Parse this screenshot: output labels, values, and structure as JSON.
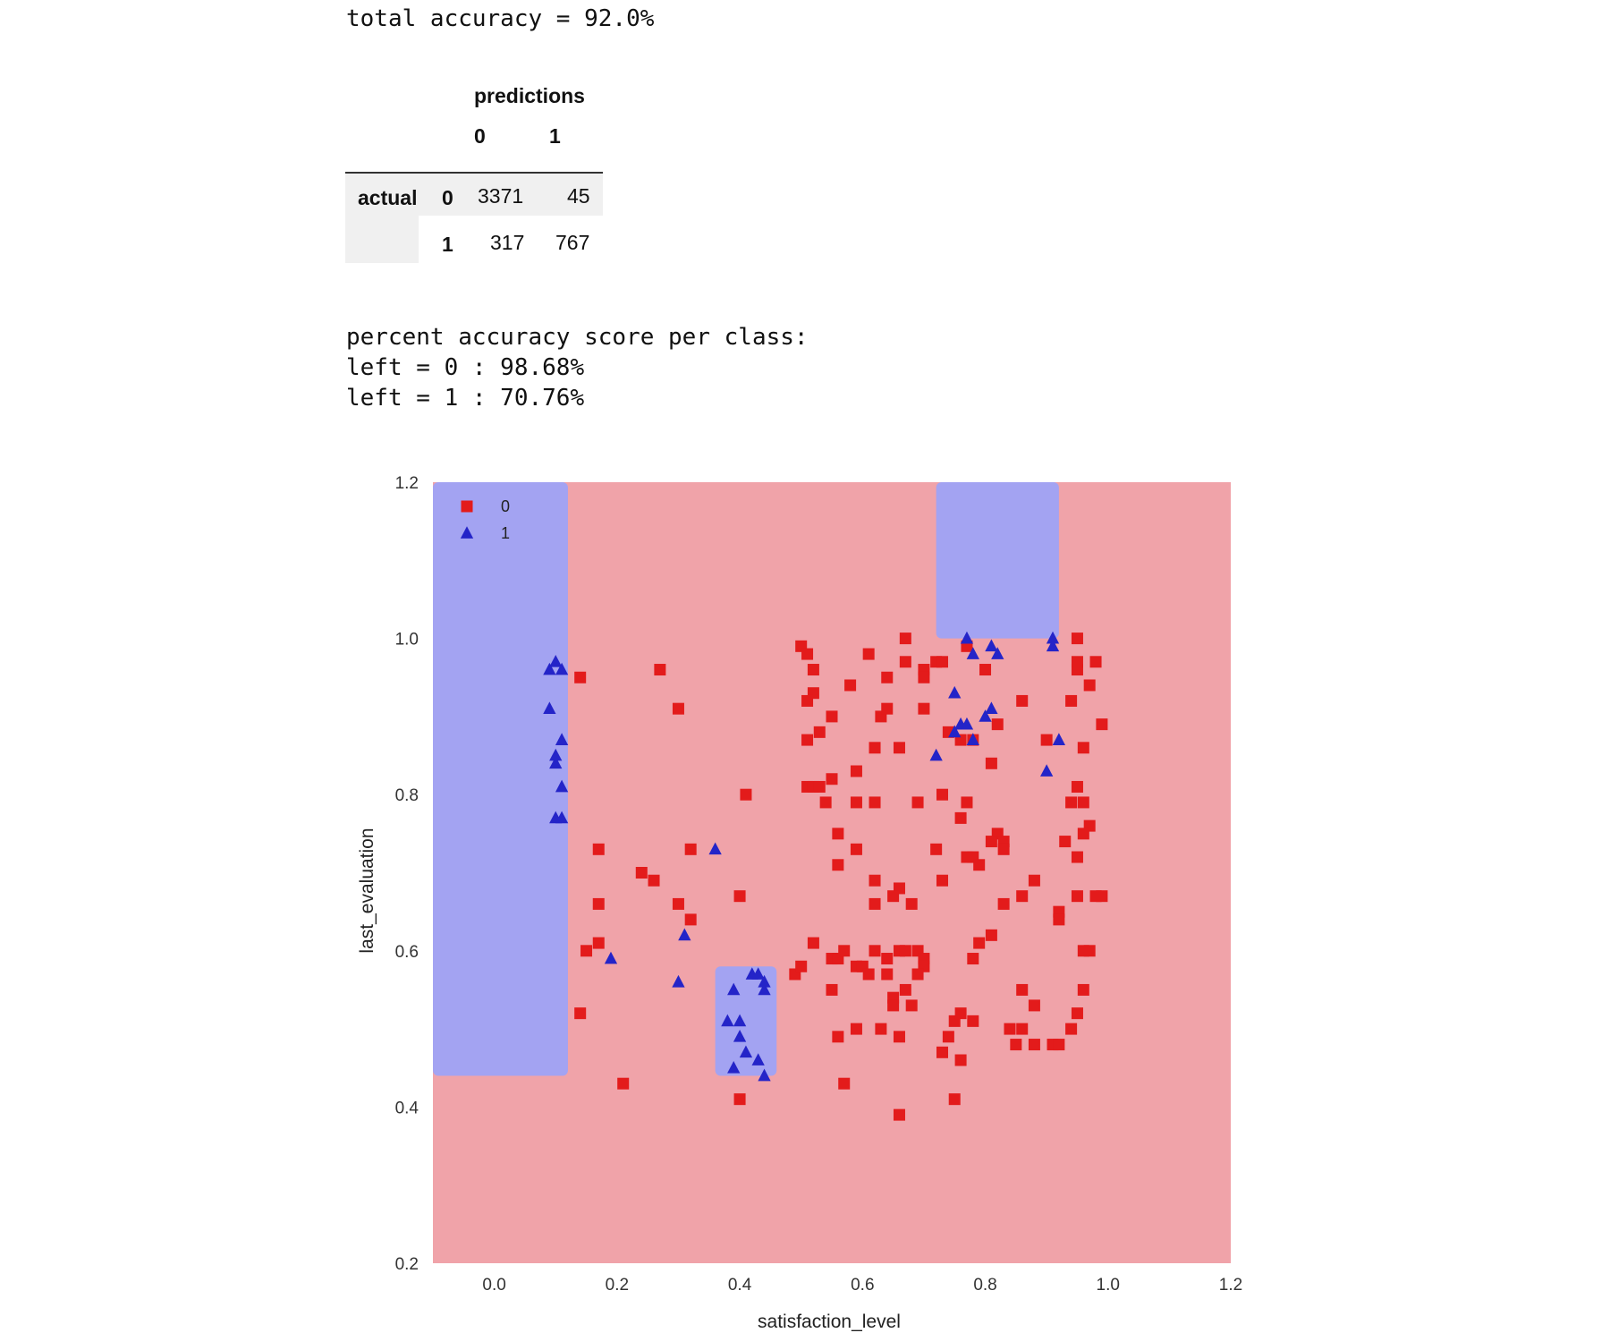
{
  "report": {
    "total_accuracy_line": "total accuracy = 92.0%",
    "per_class_heading": "percent accuracy score per class:",
    "per_class_lines": [
      "left = 0 : 98.68%",
      "left = 1 : 70.76%"
    ]
  },
  "confusion_matrix": {
    "column_group": "predictions",
    "column_labels": [
      "0",
      "1"
    ],
    "row_group": "actual",
    "row_labels": [
      "0",
      "1"
    ],
    "cells": [
      [
        "3371",
        "45"
      ],
      [
        "317",
        "767"
      ]
    ]
  },
  "chart_data": {
    "type": "scatter",
    "xlabel": "satisfaction_level",
    "ylabel": "last_evaluation",
    "xlim": [
      -0.1,
      1.2
    ],
    "ylim": [
      0.2,
      1.2
    ],
    "xticks": [
      "0.0",
      "0.2",
      "0.4",
      "0.6",
      "0.8",
      "1.0",
      "1.2"
    ],
    "yticks": [
      "0.2",
      "0.4",
      "0.6",
      "0.8",
      "1.0",
      "1.2"
    ],
    "grid": false,
    "legend_position": "top-left",
    "colors": {
      "class0_region": "#f0a3a9",
      "class1_region": "#a3a3f2",
      "class0_marker": "#e31b1b",
      "class1_marker": "#2424c8"
    },
    "decision_regions_class1": [
      {
        "x": [
          -0.1,
          0.12
        ],
        "y": [
          0.44,
          1.2
        ]
      },
      {
        "x": [
          0.36,
          0.46
        ],
        "y": [
          0.44,
          0.58
        ]
      },
      {
        "x": [
          0.72,
          0.92
        ],
        "y": [
          1.0,
          1.2
        ]
      }
    ],
    "series": [
      {
        "name": "0",
        "marker": "square",
        "points": [
          [
            0.14,
            0.95
          ],
          [
            0.27,
            0.96
          ],
          [
            0.3,
            0.91
          ],
          [
            0.41,
            0.8
          ],
          [
            0.17,
            0.73
          ],
          [
            0.32,
            0.73
          ],
          [
            0.24,
            0.7
          ],
          [
            0.26,
            0.69
          ],
          [
            0.17,
            0.66
          ],
          [
            0.3,
            0.66
          ],
          [
            0.32,
            0.64
          ],
          [
            0.4,
            0.67
          ],
          [
            0.17,
            0.61
          ],
          [
            0.15,
            0.6
          ],
          [
            0.14,
            0.52
          ],
          [
            0.21,
            0.43
          ],
          [
            0.4,
            0.41
          ],
          [
            0.5,
            0.99
          ],
          [
            0.51,
            0.98
          ],
          [
            0.52,
            0.96
          ],
          [
            0.52,
            0.93
          ],
          [
            0.51,
            0.92
          ],
          [
            0.58,
            0.94
          ],
          [
            0.61,
            0.98
          ],
          [
            0.64,
            0.95
          ],
          [
            0.67,
            1.0
          ],
          [
            0.67,
            0.97
          ],
          [
            0.7,
            0.96
          ],
          [
            0.72,
            0.97
          ],
          [
            0.77,
            0.99
          ],
          [
            0.8,
            0.96
          ],
          [
            0.7,
            0.95
          ],
          [
            0.73,
            0.97
          ],
          [
            0.55,
            0.9
          ],
          [
            0.63,
            0.9
          ],
          [
            0.64,
            0.91
          ],
          [
            0.7,
            0.91
          ],
          [
            0.51,
            0.87
          ],
          [
            0.53,
            0.88
          ],
          [
            0.62,
            0.86
          ],
          [
            0.66,
            0.86
          ],
          [
            0.74,
            0.88
          ],
          [
            0.76,
            0.87
          ],
          [
            0.78,
            0.87
          ],
          [
            0.82,
            0.89
          ],
          [
            0.81,
            0.84
          ],
          [
            0.86,
            0.92
          ],
          [
            0.95,
            1.0
          ],
          [
            0.98,
            0.97
          ],
          [
            0.95,
            0.97
          ],
          [
            0.95,
            0.96
          ],
          [
            0.97,
            0.94
          ],
          [
            0.94,
            0.92
          ],
          [
            0.99,
            0.89
          ],
          [
            0.9,
            0.87
          ],
          [
            0.96,
            0.86
          ],
          [
            0.51,
            0.81
          ],
          [
            0.52,
            0.81
          ],
          [
            0.53,
            0.81
          ],
          [
            0.55,
            0.82
          ],
          [
            0.59,
            0.83
          ],
          [
            0.54,
            0.79
          ],
          [
            0.59,
            0.79
          ],
          [
            0.62,
            0.79
          ],
          [
            0.69,
            0.79
          ],
          [
            0.73,
            0.8
          ],
          [
            0.77,
            0.79
          ],
          [
            0.76,
            0.77
          ],
          [
            0.82,
            0.75
          ],
          [
            0.81,
            0.74
          ],
          [
            0.83,
            0.74
          ],
          [
            0.56,
            0.75
          ],
          [
            0.59,
            0.73
          ],
          [
            0.56,
            0.71
          ],
          [
            0.72,
            0.73
          ],
          [
            0.77,
            0.72
          ],
          [
            0.78,
            0.72
          ],
          [
            0.79,
            0.71
          ],
          [
            0.83,
            0.73
          ],
          [
            0.73,
            0.69
          ],
          [
            0.62,
            0.69
          ],
          [
            0.66,
            0.68
          ],
          [
            0.65,
            0.67
          ],
          [
            0.62,
            0.66
          ],
          [
            0.68,
            0.66
          ],
          [
            0.83,
            0.66
          ],
          [
            0.86,
            0.67
          ],
          [
            0.88,
            0.69
          ],
          [
            0.95,
            0.81
          ],
          [
            0.94,
            0.79
          ],
          [
            0.96,
            0.79
          ],
          [
            0.97,
            0.76
          ],
          [
            0.93,
            0.74
          ],
          [
            0.95,
            0.72
          ],
          [
            0.96,
            0.75
          ],
          [
            0.95,
            0.67
          ],
          [
            0.98,
            0.67
          ],
          [
            0.99,
            0.67
          ],
          [
            0.92,
            0.65
          ],
          [
            0.92,
            0.64
          ],
          [
            0.96,
            0.6
          ],
          [
            0.97,
            0.6
          ],
          [
            0.52,
            0.61
          ],
          [
            0.55,
            0.59
          ],
          [
            0.56,
            0.59
          ],
          [
            0.57,
            0.6
          ],
          [
            0.59,
            0.58
          ],
          [
            0.49,
            0.57
          ],
          [
            0.5,
            0.58
          ],
          [
            0.55,
            0.55
          ],
          [
            0.6,
            0.58
          ],
          [
            0.62,
            0.6
          ],
          [
            0.64,
            0.59
          ],
          [
            0.66,
            0.6
          ],
          [
            0.67,
            0.6
          ],
          [
            0.69,
            0.6
          ],
          [
            0.7,
            0.59
          ],
          [
            0.7,
            0.58
          ],
          [
            0.69,
            0.57
          ],
          [
            0.61,
            0.57
          ],
          [
            0.64,
            0.57
          ],
          [
            0.67,
            0.55
          ],
          [
            0.65,
            0.54
          ],
          [
            0.65,
            0.53
          ],
          [
            0.68,
            0.53
          ],
          [
            0.56,
            0.49
          ],
          [
            0.59,
            0.5
          ],
          [
            0.63,
            0.5
          ],
          [
            0.66,
            0.49
          ],
          [
            0.74,
            0.49
          ],
          [
            0.75,
            0.51
          ],
          [
            0.76,
            0.52
          ],
          [
            0.78,
            0.51
          ],
          [
            0.78,
            0.59
          ],
          [
            0.79,
            0.61
          ],
          [
            0.81,
            0.62
          ],
          [
            0.76,
            0.46
          ],
          [
            0.73,
            0.47
          ],
          [
            0.57,
            0.43
          ],
          [
            0.66,
            0.39
          ],
          [
            0.75,
            0.41
          ],
          [
            0.86,
            0.55
          ],
          [
            0.88,
            0.53
          ],
          [
            0.84,
            0.5
          ],
          [
            0.85,
            0.48
          ],
          [
            0.86,
            0.5
          ],
          [
            0.88,
            0.48
          ],
          [
            0.91,
            0.48
          ],
          [
            0.92,
            0.48
          ],
          [
            0.94,
            0.5
          ],
          [
            0.95,
            0.52
          ],
          [
            0.96,
            0.55
          ]
        ]
      },
      {
        "name": "1",
        "marker": "triangle",
        "points": [
          [
            0.09,
            0.96
          ],
          [
            0.1,
            0.97
          ],
          [
            0.11,
            0.96
          ],
          [
            0.09,
            0.91
          ],
          [
            0.11,
            0.87
          ],
          [
            0.1,
            0.85
          ],
          [
            0.1,
            0.84
          ],
          [
            0.11,
            0.81
          ],
          [
            0.1,
            0.77
          ],
          [
            0.11,
            0.77
          ],
          [
            0.19,
            0.59
          ],
          [
            0.31,
            0.62
          ],
          [
            0.3,
            0.56
          ],
          [
            0.36,
            0.73
          ],
          [
            0.38,
            0.51
          ],
          [
            0.39,
            0.45
          ],
          [
            0.4,
            0.51
          ],
          [
            0.4,
            0.49
          ],
          [
            0.41,
            0.47
          ],
          [
            0.42,
            0.57
          ],
          [
            0.43,
            0.57
          ],
          [
            0.44,
            0.55
          ],
          [
            0.43,
            0.46
          ],
          [
            0.44,
            0.44
          ],
          [
            0.39,
            0.55
          ],
          [
            0.44,
            0.56
          ],
          [
            0.77,
            1.0
          ],
          [
            0.78,
            0.98
          ],
          [
            0.81,
            0.99
          ],
          [
            0.82,
            0.98
          ],
          [
            0.91,
            1.0
          ],
          [
            0.91,
            0.99
          ],
          [
            0.75,
            0.93
          ],
          [
            0.76,
            0.89
          ],
          [
            0.77,
            0.89
          ],
          [
            0.75,
            0.88
          ],
          [
            0.78,
            0.87
          ],
          [
            0.8,
            0.9
          ],
          [
            0.81,
            0.91
          ],
          [
            0.72,
            0.85
          ],
          [
            0.92,
            0.87
          ],
          [
            0.9,
            0.83
          ]
        ]
      }
    ]
  }
}
